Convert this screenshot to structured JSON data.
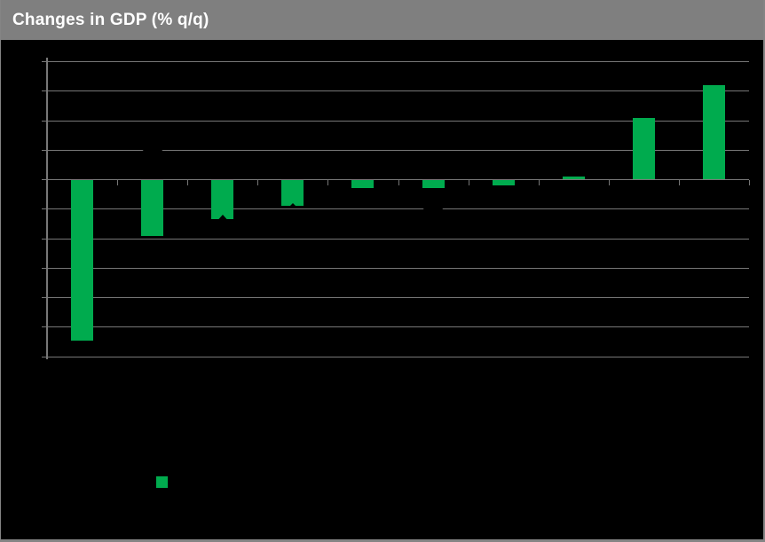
{
  "header": {
    "title": "Changes in GDP (% q/q)",
    "bg_color": "#7F7F7F",
    "text_color": "#FFFFFF"
  },
  "colors": {
    "chart_bg": "#000000",
    "bar_green": "#00AB4E",
    "grid_gray": "#777777",
    "marker_black": "#000000",
    "frame_gray": "#848484"
  },
  "chart_data": {
    "type": "bar",
    "title": "Changes in GDP (% q/q)",
    "categories": [
      "",
      "",
      "",
      "",
      "",
      "",
      "",
      "",
      "",
      ""
    ],
    "values": [
      -5.45,
      -1.9,
      -1.35,
      -0.9,
      -0.3,
      -0.3,
      -0.2,
      0.1,
      2.1,
      3.2
    ],
    "bar_color": "#00AB4E",
    "ylim": [
      -6,
      4
    ],
    "ytick_step": 1,
    "grid": true,
    "tick_labels_visible": false,
    "black_markers": [
      {
        "category_index": 1,
        "value": 1.0,
        "shape": "diamond",
        "size": "large"
      },
      {
        "category_index": 2,
        "value": -1.4,
        "shape": "triangle-up",
        "size": "large"
      },
      {
        "category_index": 3,
        "value": -0.88,
        "shape": "triangle-up",
        "size": "small"
      },
      {
        "category_index": 5,
        "value": -1.0,
        "shape": "diamond",
        "size": "large"
      }
    ],
    "legend": {
      "swatch_color": "#00AB4E",
      "label": ""
    }
  }
}
